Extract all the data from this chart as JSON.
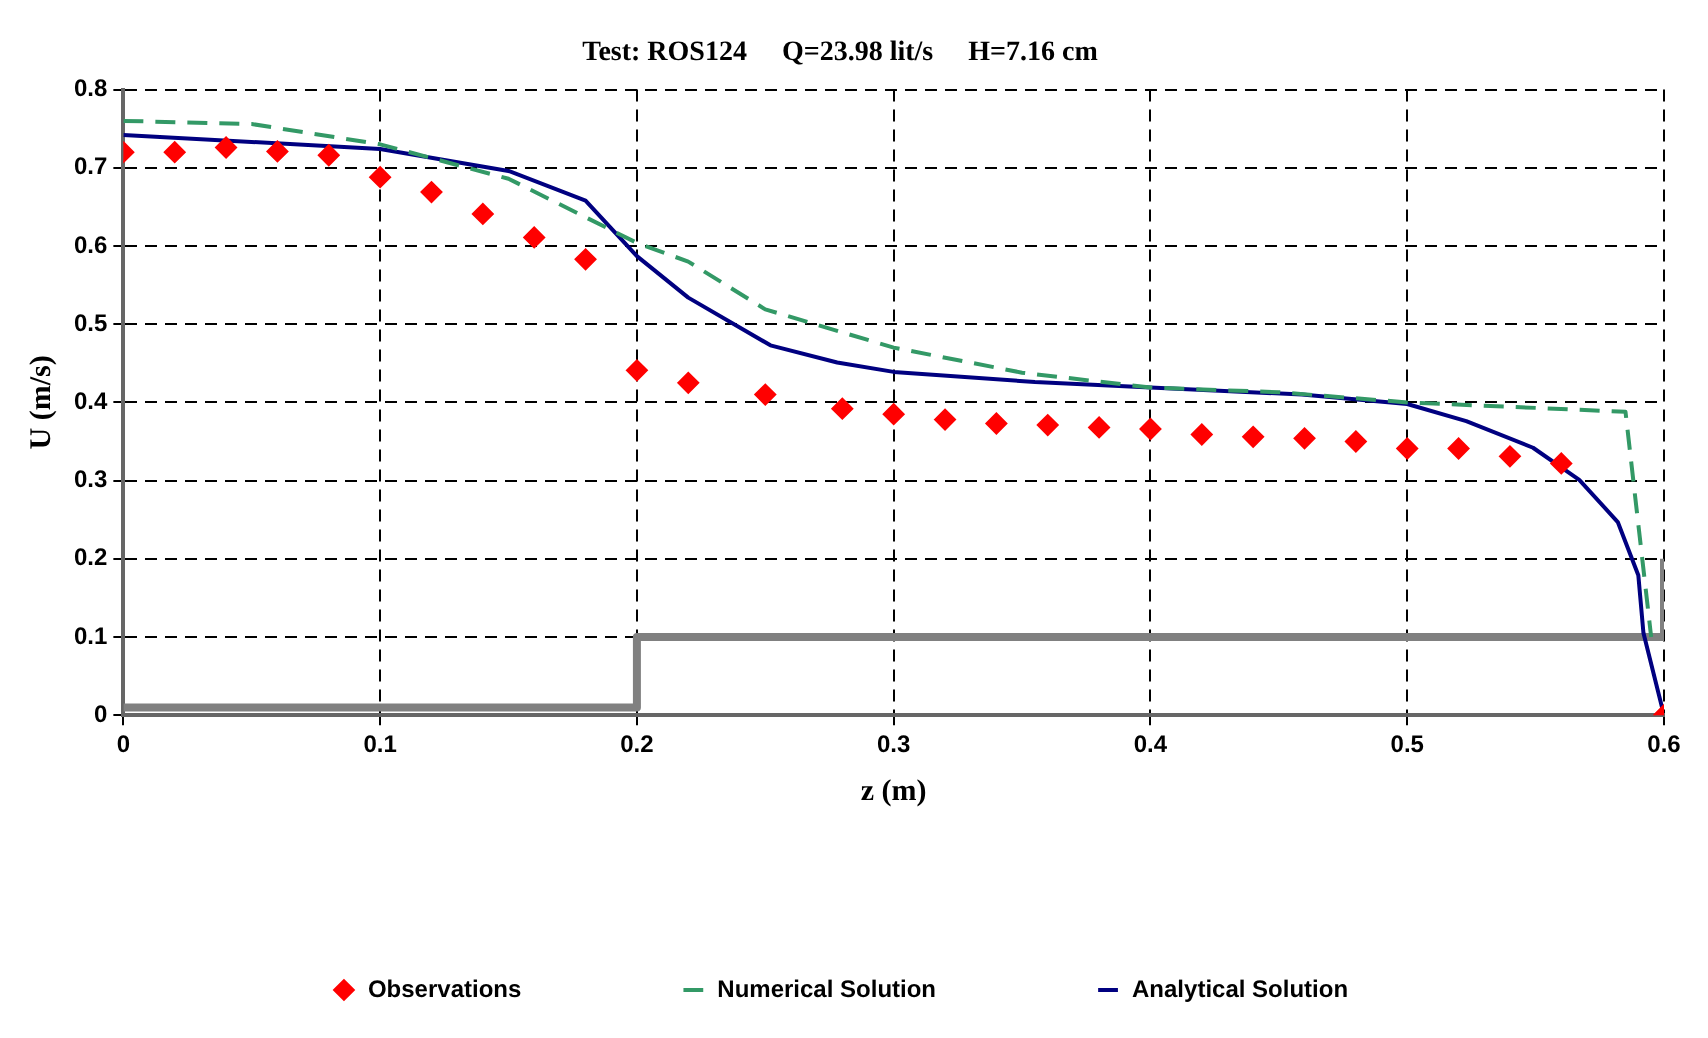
{
  "chart_data": {
    "type": "line",
    "title": "Test: ROS124     Q=23.98 lit/s     H=7.16 cm",
    "xlabel": "z (m)",
    "ylabel": "U (m/s)",
    "xlim": [
      0,
      0.6
    ],
    "xticks": [
      0,
      0.1,
      0.2,
      0.3,
      0.4,
      0.5,
      0.6
    ],
    "ylim": [
      0,
      0.8
    ],
    "yticks": [
      0,
      0.1,
      0.2,
      0.3,
      0.4,
      0.5,
      0.6,
      0.7,
      0.8
    ],
    "grid": true,
    "legend": "bottom",
    "series": [
      {
        "name": "Observations",
        "type": "scatter",
        "marker": "diamond",
        "color": "#ff0000",
        "x": [
          0,
          0.02,
          0.04,
          0.06,
          0.08,
          0.1,
          0.12,
          0.14,
          0.16,
          0.18,
          0.2,
          0.22,
          0.25,
          0.28,
          0.3,
          0.32,
          0.34,
          0.36,
          0.38,
          0.4,
          0.42,
          0.44,
          0.46,
          0.48,
          0.5,
          0.52,
          0.54,
          0.56,
          0.6
        ],
        "values": [
          0.72,
          0.72,
          0.726,
          0.721,
          0.716,
          0.688,
          0.669,
          0.641,
          0.611,
          0.583,
          0.441,
          0.425,
          0.41,
          0.392,
          0.385,
          0.378,
          0.373,
          0.371,
          0.368,
          0.366,
          0.359,
          0.356,
          0.354,
          0.35,
          0.341,
          0.341,
          0.331,
          0.322,
          0
        ]
      },
      {
        "name": "Numerical Solution",
        "type": "line",
        "marker": "none",
        "line_style": "dashed",
        "color": "#339966",
        "x": [
          0,
          0.05,
          0.1,
          0.15,
          0.2,
          0.22,
          0.25,
          0.3,
          0.35,
          0.4,
          0.45,
          0.5,
          0.55,
          0.585,
          0.595
        ],
        "values": [
          0.76,
          0.756,
          0.73,
          0.686,
          0.604,
          0.58,
          0.519,
          0.47,
          0.438,
          0.419,
          0.413,
          0.4,
          0.393,
          0.388,
          0.1
        ]
      },
      {
        "name": "Analytical Solution",
        "type": "line",
        "marker": "none",
        "line_style": "solid",
        "color": "#000080",
        "x": [
          0,
          0.1,
          0.15,
          0.18,
          0.2,
          0.22,
          0.252,
          0.278,
          0.3,
          0.355,
          0.4,
          0.459,
          0.5,
          0.523,
          0.549,
          0.567,
          0.582,
          0.59,
          0.592,
          0.6
        ],
        "values": [
          0.742,
          0.724,
          0.696,
          0.658,
          0.587,
          0.534,
          0.473,
          0.451,
          0.439,
          0.426,
          0.419,
          0.41,
          0.398,
          0.376,
          0.342,
          0.301,
          0.247,
          0.179,
          0.105,
          0
        ]
      },
      {
        "type": "line",
        "marker": "none",
        "line_style": "solid",
        "color": "#808080",
        "x": [
          0,
          0.2,
          0.2,
          0.6,
          0.6
        ],
        "values": [
          0.01,
          0.01,
          0.1,
          0.1,
          0.2
        ]
      }
    ]
  }
}
